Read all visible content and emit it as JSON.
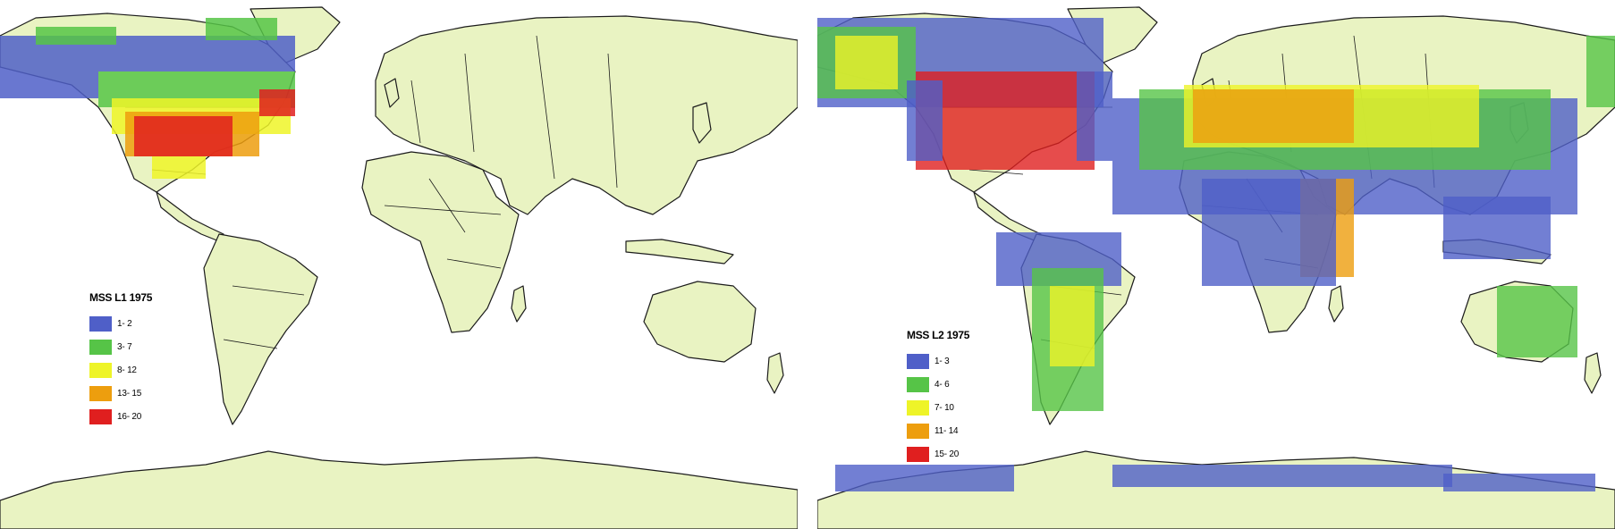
{
  "colors": {
    "land": "#e9f3c2",
    "coast": "#1b1b1b",
    "water": "#ffffff",
    "c1": "#4f5fc8",
    "c2": "#56c447",
    "c3": "#eef428",
    "c4": "#ed9e0e",
    "c5": "#e01f1f"
  },
  "maps": [
    {
      "legend": {
        "title": "MSS L1 1975",
        "items": [
          {
            "label": "1- 2",
            "color": "#4f5fc8"
          },
          {
            "label": "3- 7",
            "color": "#56c447"
          },
          {
            "label": "8- 12",
            "color": "#eef428"
          },
          {
            "label": "13- 15",
            "color": "#ed9e0e"
          },
          {
            "label": "16- 20",
            "color": "#e01f1f"
          }
        ]
      }
    },
    {
      "legend": {
        "title": "MSS L2 1975",
        "items": [
          {
            "label": "1- 3",
            "color": "#4f5fc8"
          },
          {
            "label": "4- 6",
            "color": "#56c447"
          },
          {
            "label": "7- 10",
            "color": "#eef428"
          },
          {
            "label": "11- 14",
            "color": "#ed9e0e"
          },
          {
            "label": "15- 20",
            "color": "#e01f1f"
          }
        ]
      }
    }
  ]
}
